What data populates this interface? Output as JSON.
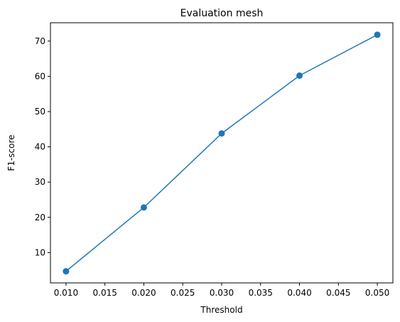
{
  "chart_data": {
    "type": "line",
    "title": "Evaluation mesh",
    "xlabel": "Threshold",
    "ylabel": "F1-score",
    "x": [
      0.01,
      0.02,
      0.03,
      0.04,
      0.05
    ],
    "series": [
      {
        "values": [
          4.7,
          22.8,
          43.8,
          60.2,
          71.8
        ]
      }
    ],
    "xlim": [
      0.008,
      0.052
    ],
    "ylim": [
      1.4,
      75.2
    ],
    "xticks": [
      0.01,
      0.015,
      0.02,
      0.025,
      0.03,
      0.035,
      0.04,
      0.045,
      0.05
    ],
    "xtick_labels": [
      "0.010",
      "0.015",
      "0.020",
      "0.025",
      "0.030",
      "0.035",
      "0.040",
      "0.045",
      "0.050"
    ],
    "yticks": [
      10,
      20,
      30,
      40,
      50,
      60,
      70
    ],
    "ytick_labels": [
      "10",
      "20",
      "30",
      "40",
      "50",
      "60",
      "70"
    ],
    "grid": false,
    "line_color": "#1f77b4",
    "marker": "circle"
  }
}
